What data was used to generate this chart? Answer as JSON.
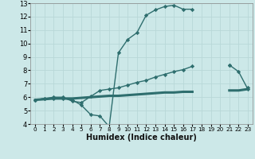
{
  "title": "",
  "xlabel": "Humidex (Indice chaleur)",
  "ylabel": "",
  "bg_color": "#cce8e8",
  "grid_color": "#b8d8d8",
  "line_color": "#2e6e6e",
  "xlim": [
    -0.5,
    23.5
  ],
  "ylim": [
    4,
    13
  ],
  "yticks": [
    4,
    5,
    6,
    7,
    8,
    9,
    10,
    11,
    12,
    13
  ],
  "xticks": [
    0,
    1,
    2,
    3,
    4,
    5,
    6,
    7,
    8,
    9,
    10,
    11,
    12,
    13,
    14,
    15,
    16,
    17,
    18,
    19,
    20,
    21,
    22,
    23
  ],
  "line1_y": [
    5.8,
    5.9,
    5.9,
    5.9,
    5.8,
    5.4,
    4.7,
    4.6,
    3.8,
    9.3,
    10.3,
    10.8,
    12.1,
    12.5,
    12.75,
    12.85,
    12.55,
    12.55,
    null,
    null,
    null,
    8.4,
    7.9,
    6.6
  ],
  "line2_y": [
    5.8,
    5.9,
    6.0,
    6.0,
    5.7,
    5.6,
    6.05,
    6.5,
    6.6,
    6.7,
    6.9,
    7.1,
    7.25,
    7.5,
    7.7,
    7.9,
    8.05,
    8.3,
    null,
    null,
    null,
    8.4,
    null,
    6.7
  ],
  "line3_y": [
    5.8,
    5.85,
    5.9,
    5.9,
    5.9,
    5.95,
    6.0,
    6.05,
    6.1,
    6.1,
    6.15,
    6.2,
    6.25,
    6.3,
    6.35,
    6.35,
    6.4,
    6.4,
    null,
    null,
    null,
    6.5,
    6.5,
    6.6
  ]
}
